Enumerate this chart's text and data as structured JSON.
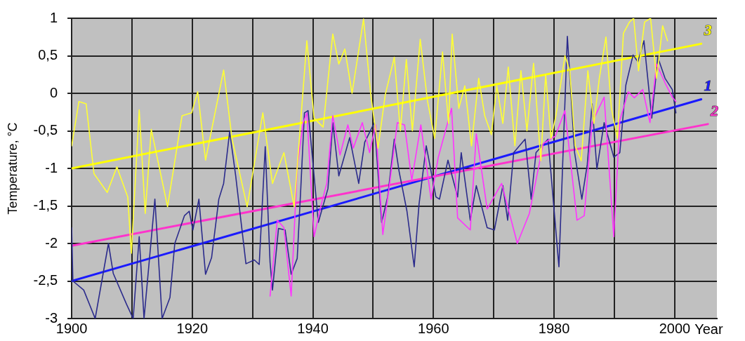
{
  "chart_data": {
    "type": "line",
    "xlabel": "Year",
    "ylabel": "Temperature, °C",
    "xlim": [
      1900,
      2007
    ],
    "ylim": [
      -3,
      1
    ],
    "xticks": [
      1900,
      {
        "value": 1910,
        "label": null
      },
      1920,
      {
        "value": 1930,
        "label": null
      },
      1940,
      {
        "value": 1950,
        "label": null
      },
      1960,
      {
        "value": 1970,
        "label": null
      },
      1980,
      {
        "value": 1990,
        "label": null
      },
      2000
    ],
    "yticks": [
      -3,
      {
        "value": -2.5,
        "label": "-2,5"
      },
      -2,
      {
        "value": -1.5,
        "label": "-1,5"
      },
      -1,
      {
        "value": -0.5,
        "label": "-0,5"
      },
      0,
      {
        "value": 0.5,
        "label": "0,5"
      },
      1
    ],
    "grid": true,
    "legend": false,
    "line_style": "solid",
    "series": [
      {
        "color": "#ffff33",
        "x": [
          1900,
          1901.2,
          1902.4,
          1903.7,
          1905.9,
          1907.5,
          1909.3,
          1909.9,
          1911.2,
          1912.2,
          1913.2,
          1915.9,
          1918.3,
          1919.9,
          1920.9,
          1922.2,
          1925.2,
          1926.6,
          1929.1,
          1931.7,
          1933.3,
          1935.2,
          1936.9,
          1939,
          1940.2,
          1941.7,
          1943.3,
          1944.3,
          1945.3,
          1946.5,
          1948.4,
          1949.6,
          1950.8,
          1952,
          1953.5,
          1954.5,
          1955.5,
          1956.5,
          1957.8,
          1959,
          1960.2,
          1961.5,
          1962.5,
          1963.1,
          1964.2,
          1965.2,
          1966.3,
          1967.5,
          1968.5,
          1969.6,
          1970.5,
          1971.5,
          1972.4,
          1973.5,
          1974.5,
          1975.5,
          1976.6,
          1977.8,
          1978.6,
          1979.5,
          1980.3,
          1981.8,
          1982.6,
          1983.5,
          1984.5,
          1985.6,
          1986.6,
          1987.5,
          1988.6,
          1989.5,
          1990.5,
          1991.5,
          1992.5,
          1993.2,
          1994,
          1995,
          1996,
          1997,
          1998,
          1998.8
        ],
        "values": [
          -0.7,
          -0.11,
          -0.14,
          -1.07,
          -1.32,
          -0.98,
          -1.38,
          -2.13,
          -0.22,
          -1.6,
          -0.48,
          -1.51,
          -0.3,
          -0.26,
          0.02,
          -0.89,
          0.31,
          -0.61,
          -1.51,
          -0.26,
          -1.2,
          -0.79,
          -1.51,
          0.7,
          -0.33,
          -0.45,
          0.79,
          0.39,
          0.59,
          0,
          0.99,
          -0.02,
          -0.73,
          -0.02,
          0.48,
          -0.5,
          0.45,
          -0.5,
          0.72,
          -0.1,
          -0.6,
          0.55,
          -0.4,
          0.79,
          -0.2,
          0.1,
          -0.7,
          0.2,
          -0.3,
          -0.55,
          0.1,
          -0.4,
          0.35,
          -0.7,
          0.3,
          -0.5,
          0.4,
          -0.9,
          0.25,
          -0.6,
          -0.3,
          0.5,
          0.3,
          -0.7,
          -0.9,
          0.3,
          -0.4,
          0.2,
          0.75,
          -0.2,
          -0.6,
          0.8,
          0.95,
          1,
          0.3,
          0.95,
          1,
          0.2,
          0.9,
          0.7
        ]
      },
      {
        "color": "#ff33ff",
        "x": [
          1932.9,
          1934.1,
          1935.2,
          1936.4,
          1937.4,
          1938.4,
          1939,
          1940.2,
          1941.3,
          1942.3,
          1943.3,
          1944.5,
          1945.8,
          1946.7,
          1948.2,
          1949.4,
          1950.4,
          1951.6,
          1952.8,
          1954,
          1955.2,
          1956.4,
          1957.9,
          1959.6,
          1960.8,
          1963,
          1964,
          1966.1,
          1967.1,
          1968.9,
          1971.3,
          1973.9,
          1975.9,
          1978.2,
          1980.2,
          1981.8,
          1983.8,
          1985,
          1986.3,
          1988.3,
          1989.9,
          1990.9,
          1992.3,
          1993.3,
          1994.7,
          1995.9,
          1997,
          1998.4,
          1999.6,
          2000.2
        ],
        "values": [
          -2.7,
          -1.69,
          -1.79,
          -2.7,
          -0.98,
          -0.39,
          -0.26,
          -1.91,
          -1.51,
          -1.2,
          -0.3,
          -0.82,
          -0.42,
          -0.73,
          -0.39,
          -0.79,
          -0.42,
          -1.88,
          -1.16,
          -0.39,
          -0.42,
          -1.16,
          -0.42,
          -1.41,
          -0.85,
          -0.2,
          -1.66,
          -1.82,
          -0.54,
          -1.54,
          -1.2,
          -2,
          -1.6,
          -0.67,
          -0.57,
          -0.23,
          -1.69,
          -1.63,
          -0.39,
          -0.05,
          -1.91,
          -0.36,
          0.02,
          -0.06,
          0.05,
          -0.39,
          0.39,
          0.14,
          -0.05,
          -0.11
        ]
      },
      {
        "color": "#2b2b8c",
        "x": [
          1900,
          1900.2,
          1902,
          1903.9,
          1906.1,
          1906.9,
          1909.1,
          1910.2,
          1911.2,
          1912,
          1913.8,
          1915,
          1916.3,
          1917.1,
          1918.7,
          1919.5,
          1920.1,
          1921.1,
          1922.2,
          1923.2,
          1924.4,
          1925.2,
          1926.2,
          1927.2,
          1928.9,
          1930.3,
          1931.1,
          1932.1,
          1932.9,
          1933.3,
          1934.3,
          1935.4,
          1936.4,
          1937.4,
          1938,
          1938.6,
          1939.2,
          1940,
          1940.9,
          1942.5,
          1943.3,
          1944.3,
          1946.1,
          1947.6,
          1948.6,
          1950.2,
          1951.4,
          1952.4,
          1953.5,
          1954.3,
          1955.6,
          1956.8,
          1957.6,
          1958.8,
          1960.4,
          1961,
          1962.4,
          1964,
          1964.6,
          1966.1,
          1967.1,
          1968.9,
          1970.1,
          1971.5,
          1972.3,
          1973.3,
          1975.2,
          1976.2,
          1977,
          1979,
          1980.8,
          1982.2,
          1983.4,
          1984.6,
          1985.5,
          1986.3,
          1987.1,
          1988.3,
          1989.9,
          1990.9,
          1991.9,
          1993.1,
          1993.9,
          1994.9,
          1996.2,
          1997.2,
          1998.4,
          1999.6,
          2000.2
        ],
        "values": [
          -1.79,
          -2.5,
          -2.62,
          -3,
          -2,
          -2.4,
          -2.81,
          -3,
          -1.91,
          -3,
          -1.41,
          -3,
          -2.72,
          -2,
          -1.63,
          -1.57,
          -1.82,
          -1.41,
          -2.41,
          -2.19,
          -1.41,
          -1.2,
          -0.51,
          -1.1,
          -2.27,
          -2.22,
          -2.28,
          -0.71,
          -2.25,
          -2.62,
          -1.8,
          -1.82,
          -2.41,
          -2.2,
          -1.26,
          -0.26,
          -0.23,
          -0.92,
          -1.72,
          -1.27,
          -0.39,
          -1.1,
          -0.59,
          -1.2,
          -0.65,
          -0.39,
          -1.72,
          -1.38,
          -0.61,
          -1.04,
          -1.57,
          -2.31,
          -1.48,
          -0.7,
          -1.38,
          -1.41,
          -0.89,
          -1.38,
          -0.79,
          -1.69,
          -1.23,
          -1.79,
          -1.82,
          -1.23,
          -1.69,
          -0.79,
          -0.61,
          -1.41,
          -0.79,
          -0.61,
          -2.31,
          0.76,
          -0.79,
          -1.41,
          -0.95,
          -0.14,
          -1.01,
          -0.39,
          -0.85,
          -0.79,
          0.11,
          0.51,
          0.42,
          0.7,
          -0.33,
          0.48,
          0.2,
          0.05,
          -0.26
        ]
      },
      {
        "name": "3",
        "color": "#ffff00",
        "x": [
          1900,
          2004.4
        ],
        "values": [
          -1,
          0.66
        ]
      },
      {
        "name": "2",
        "color": "#ff33cc",
        "x": [
          1900,
          2005.5
        ],
        "values": [
          -2.03,
          -0.41
        ]
      },
      {
        "name": "1",
        "color": "#1a1aff",
        "x": [
          1900,
          2004.4
        ],
        "values": [
          -2.5,
          -0.08
        ]
      }
    ]
  }
}
